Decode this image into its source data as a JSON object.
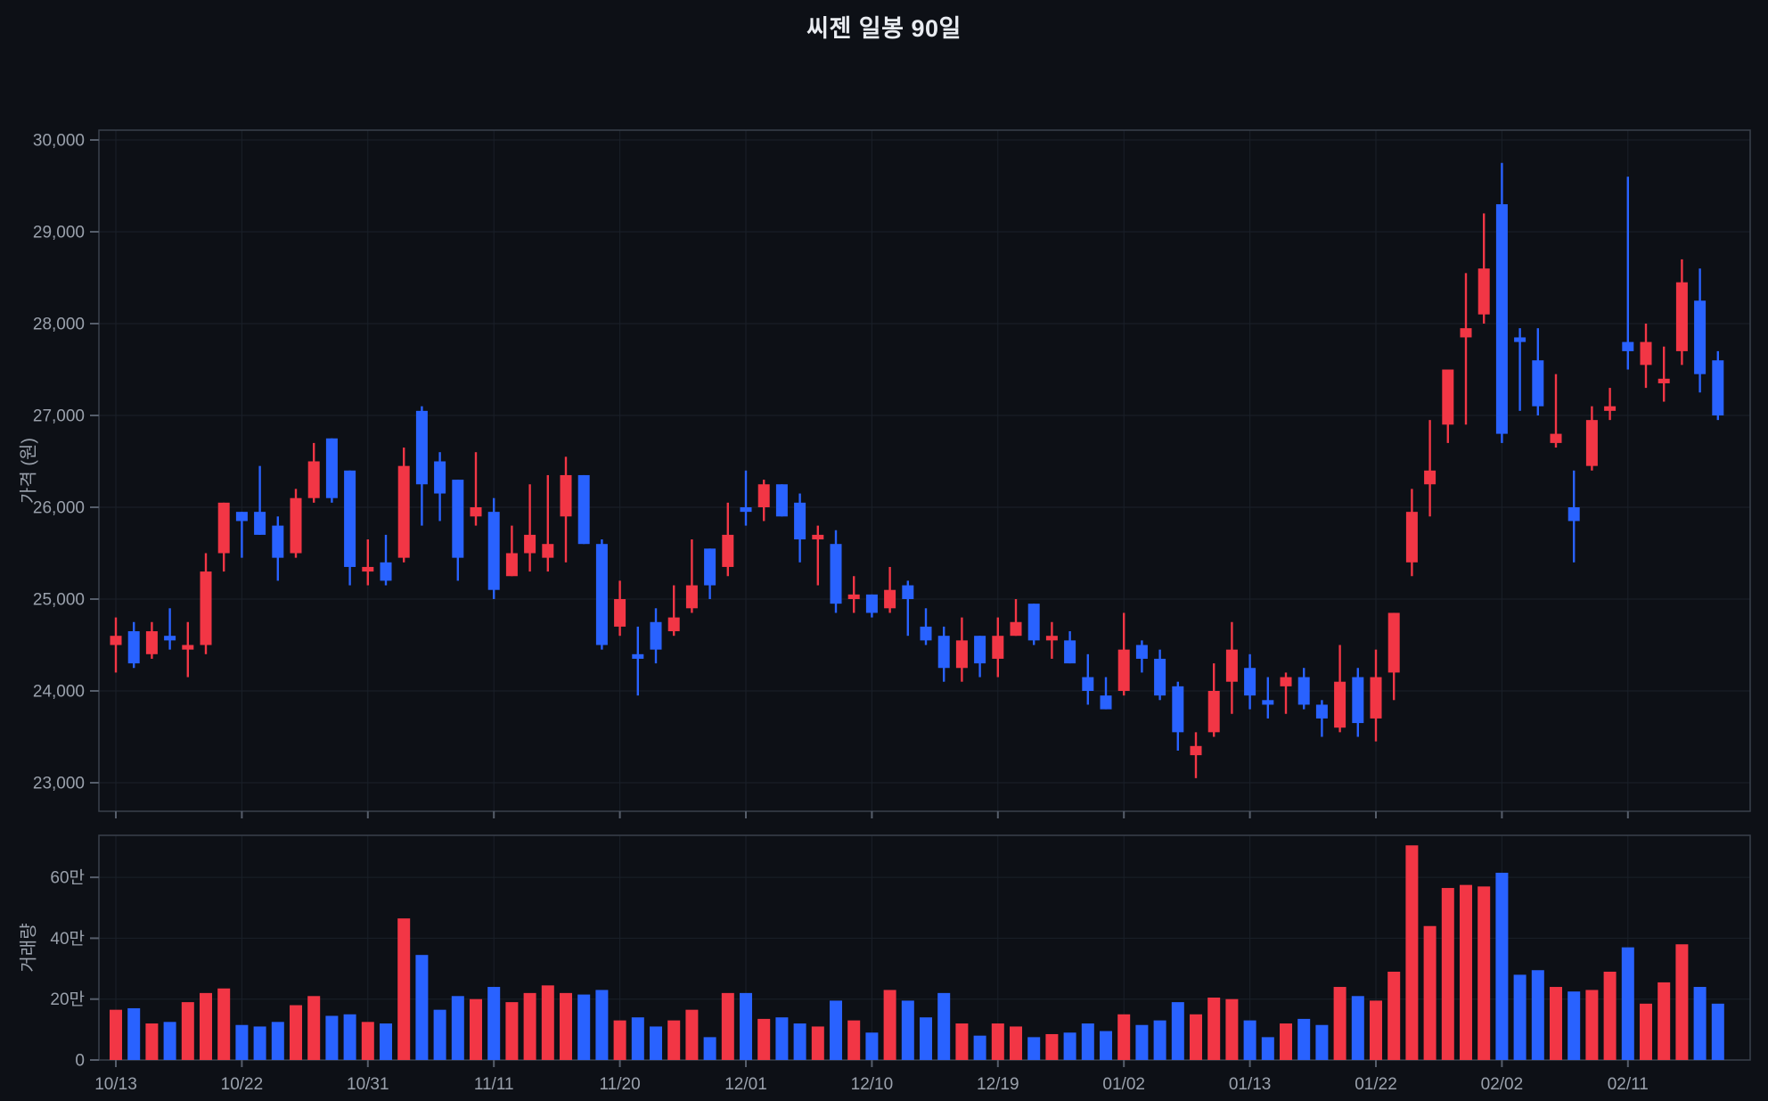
{
  "chart_data": {
    "type": "candlestick+volume",
    "title": "씨젠 일봉 90일",
    "legend": "none",
    "grid": "on",
    "price_axis": {
      "title": "가격 (원)",
      "range": [
        22700,
        30400
      ],
      "ticks": [
        {
          "v": 30000,
          "label": "30,000"
        },
        {
          "v": 29000,
          "label": "29,000"
        },
        {
          "v": 28000,
          "label": "28,000"
        },
        {
          "v": 27000,
          "label": "27,000"
        },
        {
          "v": 26000,
          "label": "26,000"
        },
        {
          "v": 25000,
          "label": "25,000"
        },
        {
          "v": 24000,
          "label": "24,000"
        },
        {
          "v": 23000,
          "label": "23,000"
        }
      ]
    },
    "volume_axis": {
      "title": "거래량",
      "range": [
        0,
        740000
      ],
      "ticks": [
        {
          "v": 600000,
          "label": "60만"
        },
        {
          "v": 400000,
          "label": "40만"
        },
        {
          "v": 200000,
          "label": "20만"
        },
        {
          "v": 0,
          "label": "0"
        }
      ]
    },
    "x_ticks": [
      {
        "bar": 0,
        "label": "10/13"
      },
      {
        "bar": 7,
        "label": "10/22"
      },
      {
        "bar": 14,
        "label": "10/31"
      },
      {
        "bar": 21,
        "label": "11/11"
      },
      {
        "bar": 28,
        "label": "11/20"
      },
      {
        "bar": 35,
        "label": "12/01"
      },
      {
        "bar": 42,
        "label": "12/10"
      },
      {
        "bar": 49,
        "label": "12/19"
      },
      {
        "bar": 56,
        "label": "01/02"
      },
      {
        "bar": 63,
        "label": "01/13"
      },
      {
        "bar": 70,
        "label": "01/22"
      },
      {
        "bar": 77,
        "label": "02/02"
      },
      {
        "bar": 84,
        "label": "02/11"
      }
    ],
    "colors": {
      "up": "#f23645",
      "down": "#2962ff",
      "background": "#0d1016",
      "tick_text": "#9aa1ac",
      "title_text": "#e9ecf1"
    },
    "candles_format": [
      "open",
      "high",
      "low",
      "close",
      "volume"
    ],
    "candles": [
      [
        24500,
        24800,
        24200,
        24600,
        165000
      ],
      [
        24650,
        24750,
        24250,
        24300,
        170000
      ],
      [
        24400,
        24750,
        24350,
        24650,
        120000
      ],
      [
        24600,
        24900,
        24450,
        24550,
        125000
      ],
      [
        24450,
        24750,
        24150,
        24500,
        190000
      ],
      [
        24500,
        25500,
        24400,
        25300,
        220000
      ],
      [
        25500,
        26050,
        25300,
        26050,
        235000
      ],
      [
        25950,
        25950,
        25450,
        25850,
        115000
      ],
      [
        25950,
        26450,
        25700,
        25700,
        110000
      ],
      [
        25800,
        25900,
        25200,
        25450,
        125000
      ],
      [
        25500,
        26200,
        25450,
        26100,
        180000
      ],
      [
        26100,
        26700,
        26050,
        26500,
        210000
      ],
      [
        26750,
        26750,
        26050,
        26100,
        145000
      ],
      [
        26400,
        26400,
        25150,
        25350,
        150000
      ],
      [
        25300,
        25650,
        25150,
        25350,
        125000
      ],
      [
        25400,
        25700,
        25150,
        25200,
        120000
      ],
      [
        25450,
        26650,
        25400,
        26450,
        465000
      ],
      [
        27050,
        27100,
        25800,
        26250,
        345000
      ],
      [
        26500,
        26600,
        25850,
        26150,
        165000
      ],
      [
        26300,
        26300,
        25200,
        25450,
        210000
      ],
      [
        25900,
        26600,
        25800,
        26000,
        200000
      ],
      [
        25950,
        26100,
        25000,
        25100,
        240000
      ],
      [
        25250,
        25800,
        25250,
        25500,
        190000
      ],
      [
        25500,
        26250,
        25300,
        25700,
        220000
      ],
      [
        25450,
        26350,
        25300,
        25600,
        245000
      ],
      [
        25900,
        26550,
        25400,
        26350,
        220000
      ],
      [
        26350,
        26350,
        25600,
        25600,
        215000
      ],
      [
        25600,
        25650,
        24450,
        24500,
        230000
      ],
      [
        24700,
        25200,
        24600,
        25000,
        130000
      ],
      [
        24400,
        24700,
        23950,
        24350,
        140000
      ],
      [
        24750,
        24900,
        24300,
        24450,
        110000
      ],
      [
        24650,
        25150,
        24600,
        24800,
        130000
      ],
      [
        24900,
        25650,
        24850,
        25150,
        165000
      ],
      [
        25550,
        25550,
        25000,
        25150,
        75000
      ],
      [
        25350,
        26050,
        25250,
        25700,
        220000
      ],
      [
        26000,
        26400,
        25800,
        25950,
        220000
      ],
      [
        26000,
        26300,
        25850,
        26250,
        135000
      ],
      [
        26250,
        26250,
        25900,
        25900,
        140000
      ],
      [
        26050,
        26150,
        25400,
        25650,
        120000
      ],
      [
        25650,
        25800,
        25150,
        25700,
        110000
      ],
      [
        25600,
        25750,
        24850,
        24950,
        195000
      ],
      [
        25000,
        25250,
        24850,
        25050,
        130000
      ],
      [
        25050,
        25050,
        24800,
        24850,
        90000
      ],
      [
        24900,
        25350,
        24850,
        25100,
        230000
      ],
      [
        25150,
        25200,
        24600,
        25000,
        195000
      ],
      [
        24700,
        24900,
        24500,
        24550,
        140000
      ],
      [
        24600,
        24700,
        24100,
        24250,
        220000
      ],
      [
        24250,
        24800,
        24100,
        24550,
        120000
      ],
      [
        24600,
        24600,
        24150,
        24300,
        80000
      ],
      [
        24350,
        24800,
        24150,
        24600,
        120000
      ],
      [
        24600,
        25000,
        24600,
        24750,
        110000
      ],
      [
        24950,
        24950,
        24500,
        24550,
        75000
      ],
      [
        24550,
        24750,
        24350,
        24600,
        85000
      ],
      [
        24550,
        24650,
        24300,
        24300,
        90000
      ],
      [
        24150,
        24400,
        23850,
        24000,
        120000
      ],
      [
        23950,
        24150,
        23800,
        23800,
        95000
      ],
      [
        24000,
        24850,
        23950,
        24450,
        150000
      ],
      [
        24500,
        24550,
        24200,
        24350,
        115000
      ],
      [
        24350,
        24450,
        23900,
        23950,
        130000
      ],
      [
        24050,
        24100,
        23350,
        23550,
        190000
      ],
      [
        23300,
        23550,
        23050,
        23400,
        150000
      ],
      [
        23550,
        24300,
        23500,
        24000,
        205000
      ],
      [
        24100,
        24750,
        23750,
        24450,
        200000
      ],
      [
        24250,
        24400,
        23800,
        23950,
        130000
      ],
      [
        23900,
        24150,
        23700,
        23850,
        75000
      ],
      [
        24050,
        24200,
        23750,
        24150,
        120000
      ],
      [
        24150,
        24250,
        23800,
        23850,
        135000
      ],
      [
        23850,
        23900,
        23500,
        23700,
        115000
      ],
      [
        23600,
        24500,
        23550,
        24100,
        240000
      ],
      [
        24150,
        24250,
        23500,
        23650,
        210000
      ],
      [
        23700,
        24450,
        23450,
        24150,
        195000
      ],
      [
        24200,
        24850,
        23900,
        24850,
        290000
      ],
      [
        25400,
        26200,
        25250,
        25950,
        705000
      ],
      [
        26250,
        26950,
        25900,
        26400,
        440000
      ],
      [
        26900,
        27500,
        26700,
        27500,
        565000
      ],
      [
        27850,
        28550,
        26900,
        27950,
        575000
      ],
      [
        28100,
        29200,
        28000,
        28600,
        570000
      ],
      [
        29300,
        29750,
        26700,
        26800,
        615000
      ],
      [
        27850,
        27950,
        27050,
        27800,
        280000
      ],
      [
        27600,
        27950,
        27000,
        27100,
        295000
      ],
      [
        26700,
        27450,
        26650,
        26800,
        240000
      ],
      [
        26000,
        26400,
        25400,
        25850,
        225000
      ],
      [
        26450,
        27100,
        26400,
        26950,
        230000
      ],
      [
        27050,
        27300,
        26950,
        27100,
        290000
      ],
      [
        27800,
        29600,
        27500,
        27700,
        370000
      ],
      [
        27550,
        28000,
        27300,
        27800,
        185000
      ],
      [
        27350,
        27750,
        27150,
        27400,
        255000
      ],
      [
        27700,
        28700,
        27550,
        28450,
        380000
      ],
      [
        28250,
        28600,
        27250,
        27450,
        240000
      ],
      [
        27600,
        27700,
        26950,
        27000,
        185000
      ]
    ]
  }
}
